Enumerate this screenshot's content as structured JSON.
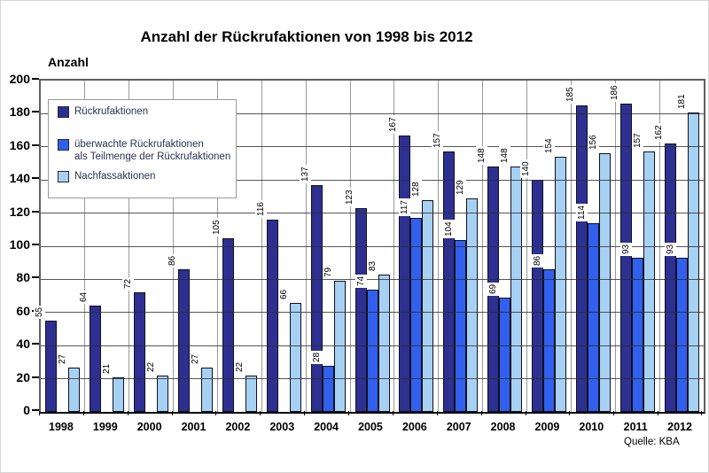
{
  "title": "Anzahl der Rückrufaktionen von 1998 bis 2012",
  "y_axis_title": "Anzahl",
  "source_label": "Quelle: KBA",
  "legend": {
    "items": [
      {
        "label": "Rückrufaktionen",
        "color": "#2d3091"
      },
      {
        "label": "überwachte Rückrufaktionen",
        "label2": "als Teilmenge der Rückrufaktionen",
        "color": "#3160ee"
      },
      {
        "label": "Nachfassaktionen",
        "color": "#a6d1f3"
      }
    ]
  },
  "chart_data": {
    "type": "bar",
    "title": "Anzahl der Rückrufaktionen von 1998 bis 2012",
    "categories": [
      "1998",
      "1999",
      "2000",
      "2001",
      "2002",
      "2003",
      "2004",
      "2005",
      "2006",
      "2007",
      "2008",
      "2009",
      "2010",
      "2011",
      "2012"
    ],
    "series": [
      {
        "key": "rueckrufaktionen",
        "name": "Rückrufaktionen",
        "color": "#2d3091",
        "values": [
          55,
          64,
          72,
          86,
          105,
          116,
          137,
          123,
          167,
          157,
          148,
          140,
          185,
          186,
          162
        ]
      },
      {
        "key": "ueberwachte-rueckrufaktionen",
        "name": "überwachte Rückrufaktionen als Teilmenge der Rückrufaktionen",
        "color": "#3160ee",
        "values": [
          null,
          null,
          null,
          null,
          null,
          null,
          28,
          74,
          117,
          104,
          69,
          86,
          114,
          93,
          93
        ]
      },
      {
        "key": "nachfassaktionen",
        "name": "Nachfassaktionen",
        "color": "#a6d1f3",
        "values": [
          27,
          21,
          22,
          27,
          22,
          66,
          79,
          83,
          128,
          129,
          148,
          154,
          156,
          157,
          181
        ]
      }
    ],
    "xlabel": "",
    "ylabel": "Anzahl",
    "ylim": [
      0,
      200
    ],
    "ytick_step": 20,
    "grid": true,
    "value_labels": "rotated-90-above-bars",
    "legend_position": "inside-top-left",
    "source": "Quelle: KBA"
  }
}
